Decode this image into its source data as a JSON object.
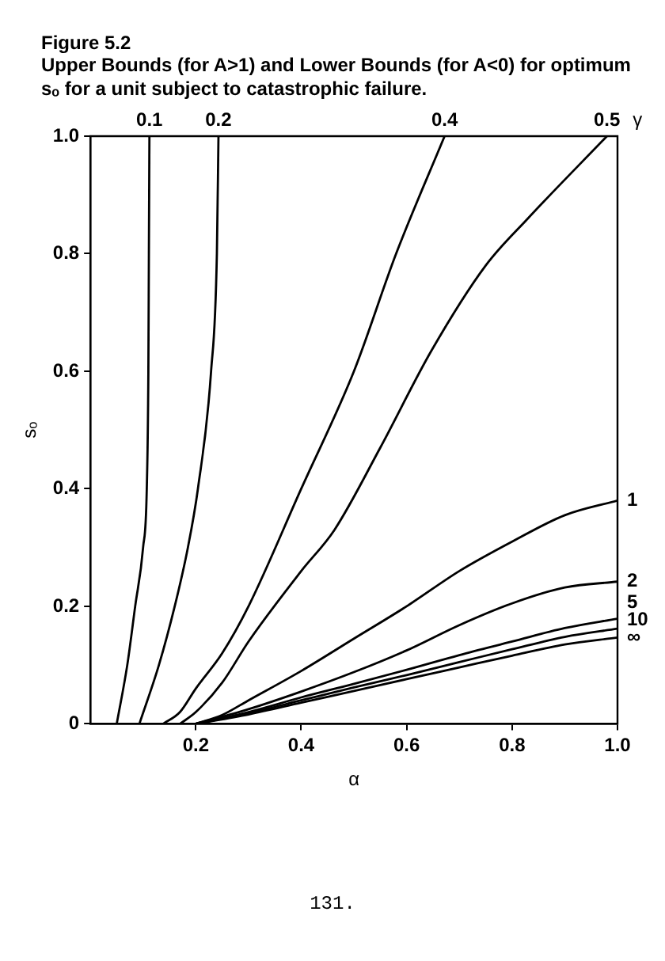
{
  "chart_data": {
    "type": "line",
    "title": "Figure 5.2",
    "subtitle": "Upper Bounds (for A>1) and Lower Bounds (for A<0) for optimum sₒ for a unit subject to catastrophic failure.",
    "xlabel": "α",
    "ylabel": "sₒ",
    "legend_title": "γ",
    "annotations": [
      "131."
    ],
    "marker": "none",
    "line_style": "solid",
    "xlim": [
      0,
      1
    ],
    "ylim": [
      0,
      1
    ],
    "xticks": [
      0.2,
      0.4,
      0.6,
      0.8,
      {
        "value": 1,
        "label": "1.0"
      }
    ],
    "yticks": [
      0,
      0.2,
      0.4,
      0.6,
      0.8,
      {
        "value": 1,
        "label": "1.0"
      }
    ],
    "series": [
      {
        "name": "0.1",
        "color": "#000000",
        "x": [
          0.05,
          0.07,
          0.085,
          0.1,
          0.107,
          0.11,
          0.111,
          0.112
        ],
        "values": [
          0,
          0.1,
          0.2,
          0.3,
          0.4,
          0.6,
          0.8,
          1.0
        ]
      },
      {
        "name": "0.2",
        "color": "#000000",
        "x": [
          0.093,
          0.13,
          0.16,
          0.185,
          0.204,
          0.229,
          0.24,
          0.243
        ],
        "values": [
          0,
          0.1,
          0.2,
          0.3,
          0.4,
          0.6,
          0.8,
          1.0
        ]
      },
      {
        "name": "0.4",
        "color": "#000000",
        "x": [
          0.138,
          0.17,
          0.2,
          0.25,
          0.3,
          0.4,
          0.5,
          0.58,
          0.672
        ],
        "values": [
          0,
          0.02,
          0.06,
          0.12,
          0.2,
          0.4,
          0.6,
          0.8,
          1.0
        ]
      },
      {
        "name": "0.5",
        "color": "#000000",
        "x": [
          0.17,
          0.2,
          0.25,
          0.3,
          0.4,
          0.463,
          0.55,
          0.647,
          0.75,
          0.83,
          0.98
        ],
        "values": [
          0,
          0.02,
          0.07,
          0.14,
          0.26,
          0.33,
          0.47,
          0.635,
          0.78,
          0.86,
          1.0
        ]
      },
      {
        "name": "1",
        "color": "#000000",
        "x": [
          0.2,
          0.25,
          0.3,
          0.4,
          0.5,
          0.6,
          0.7,
          0.8,
          0.9,
          1.0
        ],
        "values": [
          0,
          0.015,
          0.04,
          0.09,
          0.145,
          0.2,
          0.26,
          0.31,
          0.355,
          0.38
        ]
      },
      {
        "name": "2",
        "color": "#000000",
        "x": [
          0.2,
          0.3,
          0.4,
          0.5,
          0.6,
          0.7,
          0.8,
          0.9,
          1.0
        ],
        "values": [
          0,
          0.025,
          0.055,
          0.088,
          0.125,
          0.168,
          0.205,
          0.232,
          0.242
        ]
      },
      {
        "name": "5",
        "color": "#000000",
        "x": [
          0.2,
          0.3,
          0.4,
          0.5,
          0.6,
          0.7,
          0.8,
          0.9,
          1.0
        ],
        "values": [
          0,
          0.02,
          0.045,
          0.068,
          0.092,
          0.117,
          0.14,
          0.163,
          0.179
        ]
      },
      {
        "name": "10",
        "color": "#000000",
        "x": [
          0.2,
          0.3,
          0.4,
          0.5,
          0.6,
          0.7,
          0.8,
          0.9,
          1.0
        ],
        "values": [
          0,
          0.018,
          0.04,
          0.062,
          0.083,
          0.105,
          0.127,
          0.148,
          0.162
        ]
      },
      {
        "name": "∞",
        "color": "#000000",
        "x": [
          0.2,
          0.3,
          0.4,
          0.5,
          0.6,
          0.7,
          0.8,
          0.9,
          1.0
        ],
        "values": [
          0,
          0.016,
          0.036,
          0.056,
          0.076,
          0.096,
          0.116,
          0.135,
          0.147
        ]
      }
    ]
  }
}
